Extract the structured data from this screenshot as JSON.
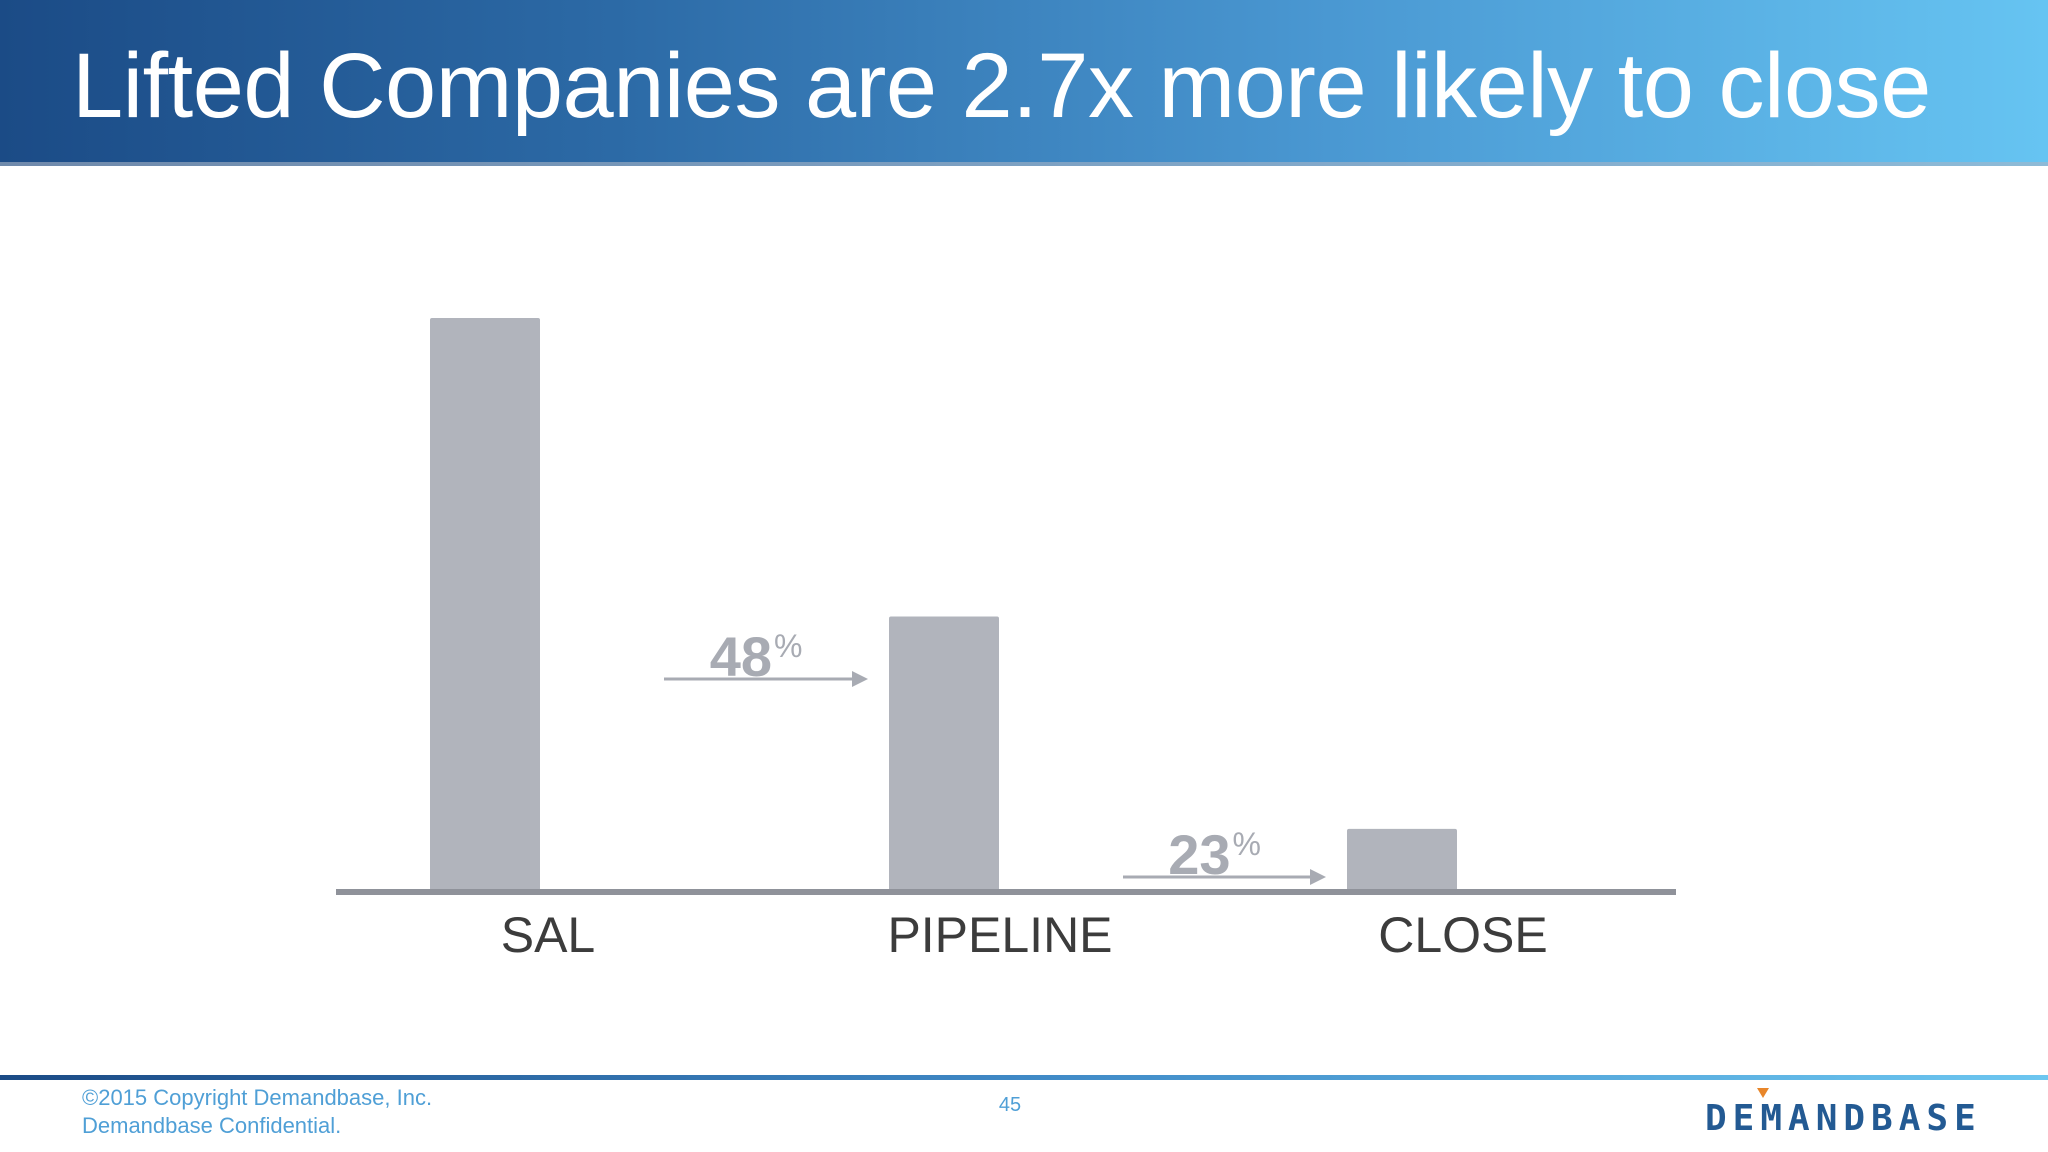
{
  "slide": {
    "title": "Lifted Companies are 2.7x more likely to close",
    "page_number": "45"
  },
  "footer": {
    "copyright_line1": "©2015 Copyright Demandbase, Inc.",
    "copyright_line2": "Demandbase Confidential.",
    "logo_text": "DEMANDBASE"
  },
  "colors": {
    "bar": "#b1b4bc",
    "axis": "#8f929a",
    "conversion": "#a8abb3",
    "category_label": "#3c3c3c",
    "header_start": "#1b4b86",
    "header_end": "#66c4f2",
    "logo_accent": "#e8862a"
  },
  "chart_data": {
    "type": "bar",
    "title": "",
    "xlabel": "",
    "ylabel": "",
    "categories": [
      "SAL",
      "PIPELINE",
      "CLOSE"
    ],
    "values": [
      100,
      48,
      11
    ],
    "ylim": [
      0,
      100
    ],
    "grid": false,
    "legend": "none",
    "annotations": [
      {
        "from": "SAL",
        "to": "PIPELINE",
        "value": "48",
        "unit": "%"
      },
      {
        "from": "PIPELINE",
        "to": "CLOSE",
        "value": "23",
        "unit": "%"
      }
    ]
  }
}
